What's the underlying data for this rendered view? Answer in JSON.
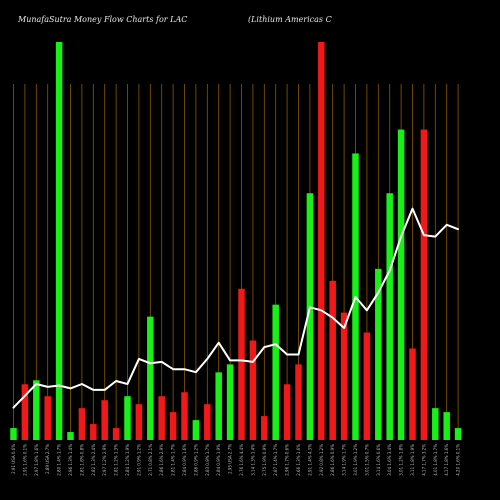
{
  "chart_data": {
    "type": "bar",
    "title": "MunafaSutra  Money Flow  Charts for LAC",
    "subtitle": "(Lithium Americas C",
    "xlabel": "",
    "ylabel": "",
    "grid": true,
    "colors": {
      "background": "#000000",
      "grid": "#8b5a00",
      "up": "#18f018",
      "down": "#f01818",
      "line": "#ffffff"
    },
    "categories": [
      "2.91 USA 0.6%",
      "2.91 1.6% 0.1%",
      "2.97 1.8% 1.6%",
      "2.89 USA 2.7%",
      "2.80 1.4% 1.7%",
      "2.96 1.3% 1.4%",
      "2.81 1.8% 0.8%",
      "2.82 1.3% 2.4%",
      "2.97 1.2% 2.9%",
      "2.81 1.2% 1.3%",
      "2.84 1.2% 1.9%",
      "2.91 0.9% 1.2%",
      "2.71 0.8% 2.1%",
      "2.86 1.6% 2.9%",
      "2.81 1.4% 1.7%",
      "2.84 0.9% 1.6%",
      "2.86 0.9% 1.2%",
      "2.83 0.9% 1.7%",
      "2.84 0.9% 1.9%",
      "2.95 USA 2.7%",
      "2.76 1.6% 4.4%",
      "3.14 1.3% 1.4%",
      "2.75 1.9% 0.9%",
      "2.87 1.4% 1.7%",
      "2.96 1.7% 0.6%",
      "2.66 1.3% 1.6%",
      "2.91 1.4% 4.3%",
      "2.92 0.8% 1.2%",
      "2.86 1.6% 0.9%",
      "3.14 1.9% 1.7%",
      "3.01 1.9% 1.2%",
      "3.01 1.5% 0.7%",
      "3.14 1.6% 0.6%",
      "3.04 1.6% 3.4%",
      "3.01 1.2% 1.8%",
      "3.11 1.8% 1.9%",
      "4.17 1.7% 3.2%",
      "4.01 1.8% 1.7%",
      "4.17 1.8% 1.6%",
      "4.20 1.6% 0.1%"
    ],
    "series": [
      {
        "kind": "volume",
        "values": [
          3,
          14,
          15,
          11,
          100,
          2,
          8,
          4,
          10,
          3,
          11,
          9,
          31,
          11,
          7,
          12,
          5,
          9,
          17,
          19,
          38,
          25,
          6,
          34,
          14,
          19,
          62,
          100,
          40,
          32,
          72,
          27,
          43,
          62,
          78,
          23,
          78,
          8,
          7,
          3
        ]
      },
      {
        "kind": "price",
        "values": [
          2.2,
          3.0,
          3.8,
          3.6,
          3.7,
          3.5,
          3.8,
          3.4,
          3.4,
          4.0,
          3.8,
          5.5,
          5.2,
          5.3,
          4.8,
          4.8,
          4.6,
          5.5,
          6.6,
          5.4,
          5.4,
          5.3,
          6.3,
          6.5,
          5.8,
          5.8,
          9.0,
          8.8,
          8.3,
          7.6,
          9.7,
          8.8,
          10.0,
          11.5,
          13.8,
          15.7,
          13.9,
          13.8,
          14.6,
          14.3
        ],
        "ylim": [
          0,
          27
        ]
      }
    ],
    "bar_direction": [
      "up",
      "down",
      "up",
      "down",
      "up",
      "up",
      "down",
      "down",
      "down",
      "down",
      "up",
      "down",
      "up",
      "down",
      "down",
      "down",
      "up",
      "down",
      "up",
      "up",
      "down",
      "down",
      "down",
      "up",
      "down",
      "down",
      "up",
      "down",
      "down",
      "down",
      "up",
      "down",
      "up",
      "up",
      "up",
      "down",
      "down",
      "up",
      "up",
      "up"
    ],
    "ylim": [
      0,
      100
    ]
  }
}
